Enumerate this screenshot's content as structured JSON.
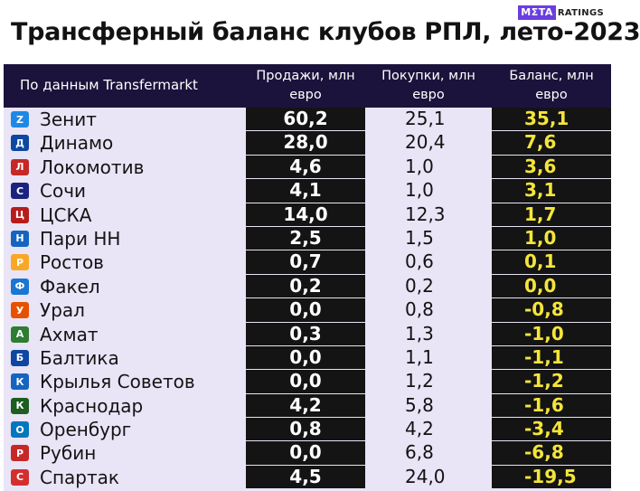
{
  "brand": {
    "box": "MΣTA",
    "text": "RATINGS"
  },
  "title": "Трансферный баланс клубов РПЛ, лето-2023",
  "header": {
    "source": "По данным Transfermarkt",
    "sales_l1": "Продажи, млн",
    "sales_l2": "евро",
    "buys_l1": "Покупки, млн",
    "buys_l2": "евро",
    "balance_l1": "Баланс, млн",
    "balance_l2": "евро"
  },
  "rows": [
    {
      "club": "Зенит",
      "sales": "60,2",
      "buys": "25,1",
      "balance": "35,1",
      "icon": "zenit-logo-icon",
      "color": "#1e88e5",
      "glyph": "Z"
    },
    {
      "club": "Динамо",
      "sales": "28,0",
      "buys": "20,4",
      "balance": "7,6",
      "icon": "dinamo-logo-icon",
      "color": "#0d47a1",
      "glyph": "Д"
    },
    {
      "club": "Локомотив",
      "sales": "4,6",
      "buys": "1,0",
      "balance": "3,6",
      "icon": "lokomotiv-logo-icon",
      "color": "#c62828",
      "glyph": "Л"
    },
    {
      "club": "Сочи",
      "sales": "4,1",
      "buys": "1,0",
      "balance": "3,1",
      "icon": "sochi-logo-icon",
      "color": "#1a237e",
      "glyph": "С"
    },
    {
      "club": "ЦСКА",
      "sales": "14,0",
      "buys": "12,3",
      "balance": "1,7",
      "icon": "cska-logo-icon",
      "color": "#b71c1c",
      "glyph": "Ц"
    },
    {
      "club": "Пари НН",
      "sales": "2,5",
      "buys": "1,5",
      "balance": "1,0",
      "icon": "pari-nn-logo-icon",
      "color": "#1565c0",
      "glyph": "Н"
    },
    {
      "club": "Ростов",
      "sales": "0,7",
      "buys": "0,6",
      "balance": "0,1",
      "icon": "rostov-logo-icon",
      "color": "#f9a825",
      "glyph": "Р"
    },
    {
      "club": "Факел",
      "sales": "0,2",
      "buys": "0,2",
      "balance": "0,0",
      "icon": "fakel-logo-icon",
      "color": "#1976d2",
      "glyph": "Ф"
    },
    {
      "club": "Урал",
      "sales": "0,0",
      "buys": "0,8",
      "balance": "-0,8",
      "icon": "ural-logo-icon",
      "color": "#e65100",
      "glyph": "У"
    },
    {
      "club": "Ахмат",
      "sales": "0,3",
      "buys": "1,3",
      "balance": "-1,0",
      "icon": "akhmat-logo-icon",
      "color": "#2e7d32",
      "glyph": "А"
    },
    {
      "club": "Балтика",
      "sales": "0,0",
      "buys": "1,1",
      "balance": "-1,1",
      "icon": "baltika-logo-icon",
      "color": "#0d47a1",
      "glyph": "Б"
    },
    {
      "club": "Крылья Советов",
      "sales": "0,0",
      "buys": "1,2",
      "balance": "-1,2",
      "icon": "krylia-sovetov-logo-icon",
      "color": "#1565c0",
      "glyph": "К"
    },
    {
      "club": "Краснодар",
      "sales": "4,2",
      "buys": "5,8",
      "balance": "-1,6",
      "icon": "krasnodar-logo-icon",
      "color": "#1b5e20",
      "glyph": "К"
    },
    {
      "club": "Оренбург",
      "sales": "0,8",
      "buys": "4,2",
      "balance": "-3,4",
      "icon": "orenburg-logo-icon",
      "color": "#0277bd",
      "glyph": "О"
    },
    {
      "club": "Рубин",
      "sales": "0,0",
      "buys": "6,8",
      "balance": "-6,8",
      "icon": "rubin-logo-icon",
      "color": "#c62828",
      "glyph": "Р"
    },
    {
      "club": "Спартак",
      "sales": "4,5",
      "buys": "24,0",
      "balance": "-19,5",
      "icon": "spartak-logo-icon",
      "color": "#d32f2f",
      "glyph": "С"
    }
  ]
}
